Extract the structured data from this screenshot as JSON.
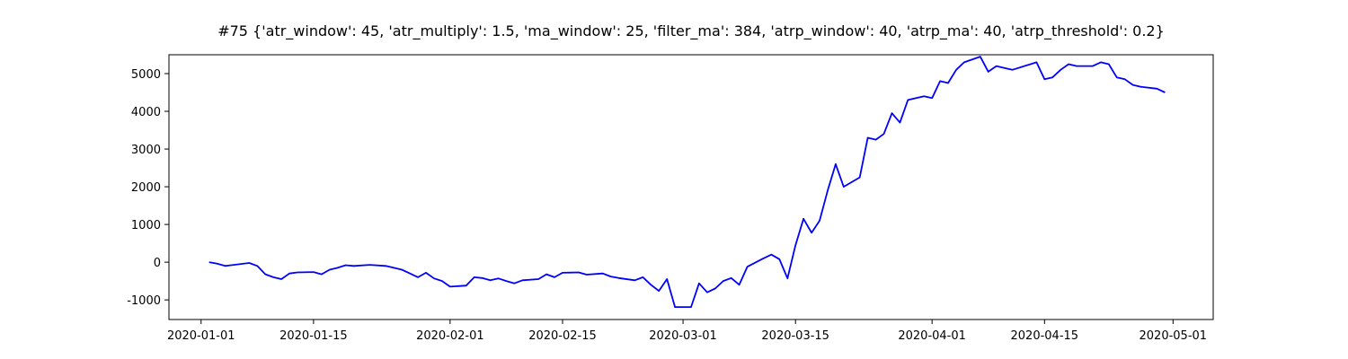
{
  "chart_data": {
    "type": "line",
    "title": "#75 {'atr_window': 45, 'atr_multiply': 1.5, 'ma_window': 25, 'filter_ma': 384, 'atrp_window': 40, 'atrp_ma': 40, 'atrp_threshold': 0.2}",
    "color": "#0000ff",
    "x": [
      "2020-01-02",
      "2020-01-03",
      "2020-01-04",
      "2020-01-07",
      "2020-01-08",
      "2020-01-09",
      "2020-01-10",
      "2020-01-11",
      "2020-01-12",
      "2020-01-13",
      "2020-01-15",
      "2020-01-16",
      "2020-01-17",
      "2020-01-18",
      "2020-01-19",
      "2020-01-20",
      "2020-01-22",
      "2020-01-24",
      "2020-01-26",
      "2020-01-27",
      "2020-01-28",
      "2020-01-29",
      "2020-01-30",
      "2020-01-31",
      "2020-02-01",
      "2020-02-03",
      "2020-02-04",
      "2020-02-05",
      "2020-02-06",
      "2020-02-07",
      "2020-02-08",
      "2020-02-09",
      "2020-02-10",
      "2020-02-12",
      "2020-02-13",
      "2020-02-14",
      "2020-02-15",
      "2020-02-17",
      "2020-02-18",
      "2020-02-20",
      "2020-02-21",
      "2020-02-22",
      "2020-02-24",
      "2020-02-25",
      "2020-02-26",
      "2020-02-27",
      "2020-02-28",
      "2020-02-29",
      "2020-03-02",
      "2020-03-03",
      "2020-03-04",
      "2020-03-05",
      "2020-03-06",
      "2020-03-07",
      "2020-03-08",
      "2020-03-09",
      "2020-03-11",
      "2020-03-12",
      "2020-03-13",
      "2020-03-14",
      "2020-03-15",
      "2020-03-16",
      "2020-03-17",
      "2020-03-18",
      "2020-03-19",
      "2020-03-20",
      "2020-03-21",
      "2020-03-23",
      "2020-03-24",
      "2020-03-25",
      "2020-03-26",
      "2020-03-27",
      "2020-03-28",
      "2020-03-29",
      "2020-03-31",
      "2020-04-01",
      "2020-04-02",
      "2020-04-03",
      "2020-04-04",
      "2020-04-05",
      "2020-04-07",
      "2020-04-08",
      "2020-04-09",
      "2020-04-10",
      "2020-04-11",
      "2020-04-14",
      "2020-04-15",
      "2020-04-16",
      "2020-04-17",
      "2020-04-18",
      "2020-04-19",
      "2020-04-21",
      "2020-04-22",
      "2020-04-23",
      "2020-04-24",
      "2020-04-25",
      "2020-04-26",
      "2020-04-27",
      "2020-04-29",
      "2020-04-30"
    ],
    "values": [
      0,
      -40,
      -100,
      -20,
      -100,
      -320,
      -400,
      -450,
      -300,
      -270,
      -260,
      -320,
      -200,
      -150,
      -80,
      -100,
      -70,
      -100,
      -200,
      -300,
      -400,
      -280,
      -430,
      -500,
      -650,
      -620,
      -400,
      -420,
      -480,
      -430,
      -500,
      -560,
      -480,
      -450,
      -320,
      -400,
      -280,
      -270,
      -330,
      -300,
      -380,
      -420,
      -480,
      -400,
      -600,
      -760,
      -450,
      -1190,
      -1190,
      -560,
      -800,
      -700,
      -500,
      -420,
      -600,
      -120,
      100,
      200,
      80,
      -430,
      450,
      1150,
      780,
      1100,
      1900,
      2600,
      2000,
      2250,
      3300,
      3250,
      3400,
      3950,
      3700,
      4300,
      4400,
      4350,
      4800,
      4750,
      5100,
      5300,
      5450,
      5050,
      5200,
      5150,
      5100,
      5300,
      4850,
      4900,
      5100,
      5250,
      5200,
      5200,
      5300,
      5250,
      4900,
      4850,
      4700,
      4650,
      4600,
      4500
    ],
    "xlim": [
      "2019-12-28",
      "2020-05-06"
    ],
    "xticks": [
      "2020-01-01",
      "2020-01-15",
      "2020-02-01",
      "2020-02-15",
      "2020-03-01",
      "2020-03-15",
      "2020-04-01",
      "2020-04-15",
      "2020-05-01"
    ],
    "ylim": [
      -1520,
      5500
    ],
    "yticks": [
      -1000,
      0,
      1000,
      2000,
      3000,
      4000,
      5000
    ]
  }
}
